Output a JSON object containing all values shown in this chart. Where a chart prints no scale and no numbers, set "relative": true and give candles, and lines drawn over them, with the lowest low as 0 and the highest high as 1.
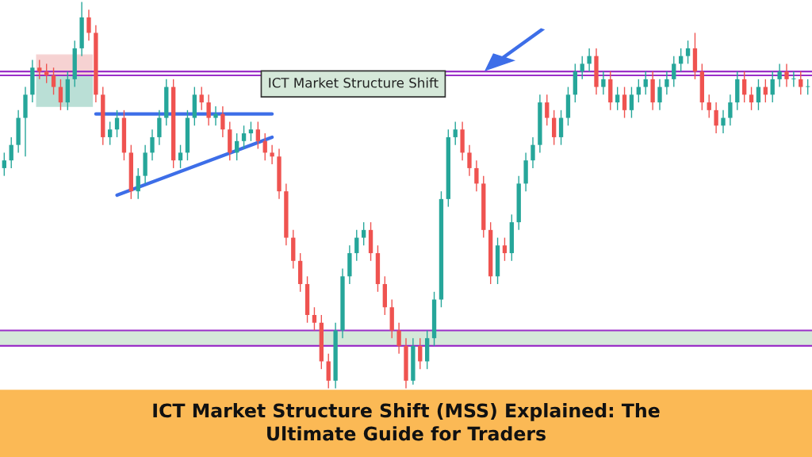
{
  "chart_data": {
    "type": "candlestick",
    "relative": true,
    "title": "ICT Market Structure Shift (MSS) Explained: The\nUltimate Guide for Traders",
    "annotations": [
      "ICT Market Structure Shift"
    ],
    "colors": [
      "#26a69a",
      "#26a69a",
      "#26a69a",
      "#26a69a",
      "#26a69a",
      "#ef5350",
      "#ef5350",
      "#ef5350",
      "#ef5350",
      "#26a69a",
      "#26a69a",
      "#26a69a",
      "#ef5350",
      "#ef5350",
      "#ef5350",
      "#26a69a",
      "#26a69a",
      "#ef5350",
      "#ef5350",
      "#26a69a",
      "#26a69a",
      "#26a69a",
      "#26a69a",
      "#26a69a",
      "#ef5350",
      "#26a69a",
      "#26a69a",
      "#26a69a",
      "#ef5350",
      "#ef5350",
      "#26a69a",
      "#ef5350",
      "#ef5350",
      "#26a69a",
      "#26a69a",
      "#26a69a",
      "#ef5350",
      "#ef5350",
      "#ef5350",
      "#ef5350",
      "#ef5350",
      "#ef5350",
      "#ef5350",
      "#ef5350",
      "#ef5350",
      "#ef5350",
      "#ef5350",
      "#26a69a",
      "#26a69a",
      "#26a69a",
      "#26a69a",
      "#26a69a",
      "#ef5350",
      "#ef5350",
      "#ef5350",
      "#ef5350",
      "#ef5350",
      "#ef5350",
      "#26a69a",
      "#ef5350",
      "#26a69a",
      "#26a69a",
      "#26a69a",
      "#26a69a",
      "#26a69a",
      "#ef5350",
      "#ef5350",
      "#ef5350",
      "#ef5350",
      "#ef5350",
      "#26a69a",
      "#ef5350",
      "#26a69a",
      "#26a69a",
      "#26a69a",
      "#26a69a",
      "#26a69a",
      "#ef5350",
      "#ef5350",
      "#26a69a",
      "#26a69a",
      "#26a69a",
      "#26a69a",
      "#26a69a",
      "#ef5350",
      "#26a69a",
      "#ef5350",
      "#26a69a",
      "#ef5350",
      "#26a69a",
      "#26a69a",
      "#26a69a",
      "#ef5350",
      "#26a69a",
      "#26a69a",
      "#26a69a",
      "#26a69a",
      "#26a69a",
      "#ef5350",
      "#ef5350",
      "#ef5350",
      "#ef5350",
      "#26a69a",
      "#26a69a",
      "#26a69a",
      "#ef5350",
      "#ef5350",
      "#26a69a",
      "#ef5350",
      "#26a69a",
      "#26a69a",
      "#ef5350",
      "#26a69a",
      "#ef5350",
      "#26a69a"
    ],
    "categories": [
      null,
      null,
      null,
      null,
      null,
      null,
      null,
      null,
      null,
      null,
      null,
      null,
      null,
      null,
      null,
      null,
      null,
      null,
      null,
      null,
      null,
      null,
      null,
      null,
      null,
      null,
      null,
      null,
      null,
      null,
      null,
      null,
      null,
      null,
      null,
      null,
      null,
      null,
      null,
      null,
      null,
      null,
      null,
      null,
      null,
      null,
      null,
      null,
      null,
      null,
      null,
      null,
      null,
      null,
      null,
      null,
      null,
      null,
      null,
      null,
      null,
      null,
      null,
      null,
      null,
      null,
      null,
      null,
      null,
      null,
      null,
      null,
      null,
      null,
      null,
      null,
      null,
      null,
      null,
      null,
      null,
      null,
      null,
      null,
      null,
      null,
      null,
      null,
      null,
      null,
      null,
      null,
      null,
      null,
      null,
      null,
      null,
      null,
      null,
      null,
      null,
      null,
      null,
      null,
      null,
      null,
      null,
      null,
      null,
      null,
      null,
      null,
      null,
      null,
      null
    ],
    "ohlc": [
      [
        0.57,
        0.61,
        0.55,
        0.59
      ],
      [
        0.59,
        0.65,
        0.57,
        0.63
      ],
      [
        0.63,
        0.72,
        0.61,
        0.7
      ],
      [
        0.7,
        0.78,
        0.6,
        0.76
      ],
      [
        0.76,
        0.85,
        0.74,
        0.83
      ],
      [
        0.83,
        0.85,
        0.8,
        0.82
      ],
      [
        0.82,
        0.84,
        0.79,
        0.81
      ],
      [
        0.81,
        0.83,
        0.76,
        0.78
      ],
      [
        0.78,
        0.8,
        0.72,
        0.74
      ],
      [
        0.74,
        0.82,
        0.72,
        0.8
      ],
      [
        0.8,
        0.9,
        0.78,
        0.88
      ],
      [
        0.88,
        1.0,
        0.86,
        0.96
      ],
      [
        0.96,
        0.98,
        0.9,
        0.92
      ],
      [
        0.92,
        0.94,
        0.74,
        0.76
      ],
      [
        0.76,
        0.78,
        0.63,
        0.65
      ],
      [
        0.65,
        0.69,
        0.63,
        0.67
      ],
      [
        0.67,
        0.72,
        0.65,
        0.7
      ],
      [
        0.7,
        0.72,
        0.59,
        0.61
      ],
      [
        0.61,
        0.63,
        0.49,
        0.51
      ],
      [
        0.51,
        0.57,
        0.49,
        0.55
      ],
      [
        0.55,
        0.63,
        0.53,
        0.61
      ],
      [
        0.61,
        0.67,
        0.59,
        0.65
      ],
      [
        0.65,
        0.72,
        0.63,
        0.7
      ],
      [
        0.7,
        0.8,
        0.68,
        0.78
      ],
      [
        0.78,
        0.8,
        0.57,
        0.59
      ],
      [
        0.59,
        0.63,
        0.57,
        0.61
      ],
      [
        0.61,
        0.72,
        0.59,
        0.7
      ],
      [
        0.7,
        0.78,
        0.68,
        0.76
      ],
      [
        0.76,
        0.78,
        0.72,
        0.74
      ],
      [
        0.74,
        0.76,
        0.68,
        0.7
      ],
      [
        0.7,
        0.73,
        0.68,
        0.71
      ],
      [
        0.71,
        0.73,
        0.65,
        0.67
      ],
      [
        0.67,
        0.69,
        0.59,
        0.61
      ],
      [
        0.61,
        0.66,
        0.59,
        0.64
      ],
      [
        0.64,
        0.68,
        0.62,
        0.66
      ],
      [
        0.66,
        0.69,
        0.64,
        0.67
      ],
      [
        0.67,
        0.69,
        0.62,
        0.64
      ],
      [
        0.64,
        0.66,
        0.59,
        0.61
      ],
      [
        0.61,
        0.63,
        0.58,
        0.6
      ],
      [
        0.6,
        0.62,
        0.49,
        0.51
      ],
      [
        0.51,
        0.53,
        0.37,
        0.39
      ],
      [
        0.39,
        0.41,
        0.31,
        0.33
      ],
      [
        0.33,
        0.35,
        0.25,
        0.27
      ],
      [
        0.27,
        0.29,
        0.17,
        0.19
      ],
      [
        0.19,
        0.21,
        0.15,
        0.17
      ],
      [
        0.17,
        0.19,
        0.05,
        0.07
      ],
      [
        0.07,
        0.09,
        0.0,
        0.02
      ],
      [
        0.02,
        0.17,
        0.0,
        0.15
      ],
      [
        0.15,
        0.31,
        0.13,
        0.29
      ],
      [
        0.29,
        0.37,
        0.27,
        0.35
      ],
      [
        0.35,
        0.41,
        0.33,
        0.39
      ],
      [
        0.39,
        0.43,
        0.37,
        0.41
      ],
      [
        0.41,
        0.43,
        0.33,
        0.35
      ],
      [
        0.35,
        0.37,
        0.25,
        0.27
      ],
      [
        0.27,
        0.29,
        0.19,
        0.21
      ],
      [
        0.21,
        0.23,
        0.13,
        0.15
      ],
      [
        0.15,
        0.17,
        0.09,
        0.11
      ],
      [
        0.11,
        0.13,
        0.0,
        0.02
      ],
      [
        0.02,
        0.13,
        0.01,
        0.11
      ],
      [
        0.11,
        0.13,
        0.05,
        0.07
      ],
      [
        0.07,
        0.15,
        0.05,
        0.13
      ],
      [
        0.13,
        0.25,
        0.11,
        0.23
      ],
      [
        0.23,
        0.51,
        0.21,
        0.49
      ],
      [
        0.49,
        0.67,
        0.47,
        0.65
      ],
      [
        0.65,
        0.69,
        0.63,
        0.67
      ],
      [
        0.67,
        0.69,
        0.59,
        0.61
      ],
      [
        0.61,
        0.63,
        0.55,
        0.57
      ],
      [
        0.57,
        0.59,
        0.51,
        0.53
      ],
      [
        0.53,
        0.55,
        0.39,
        0.41
      ],
      [
        0.41,
        0.43,
        0.27,
        0.29
      ],
      [
        0.29,
        0.39,
        0.27,
        0.37
      ],
      [
        0.37,
        0.39,
        0.33,
        0.35
      ],
      [
        0.35,
        0.45,
        0.33,
        0.43
      ],
      [
        0.43,
        0.55,
        0.41,
        0.53
      ],
      [
        0.53,
        0.61,
        0.51,
        0.59
      ],
      [
        0.59,
        0.65,
        0.57,
        0.63
      ],
      [
        0.63,
        0.76,
        0.61,
        0.74
      ],
      [
        0.74,
        0.76,
        0.68,
        0.7
      ],
      [
        0.7,
        0.72,
        0.63,
        0.65
      ],
      [
        0.65,
        0.72,
        0.63,
        0.7
      ],
      [
        0.7,
        0.78,
        0.68,
        0.76
      ],
      [
        0.76,
        0.84,
        0.74,
        0.82
      ],
      [
        0.82,
        0.86,
        0.8,
        0.84
      ],
      [
        0.84,
        0.88,
        0.82,
        0.86
      ],
      [
        0.86,
        0.88,
        0.76,
        0.78
      ],
      [
        0.78,
        0.82,
        0.76,
        0.8
      ],
      [
        0.8,
        0.82,
        0.72,
        0.74
      ],
      [
        0.74,
        0.78,
        0.72,
        0.76
      ],
      [
        0.76,
        0.78,
        0.7,
        0.72
      ],
      [
        0.72,
        0.78,
        0.7,
        0.76
      ],
      [
        0.76,
        0.8,
        0.74,
        0.78
      ],
      [
        0.78,
        0.82,
        0.76,
        0.8
      ],
      [
        0.8,
        0.82,
        0.72,
        0.74
      ],
      [
        0.74,
        0.8,
        0.72,
        0.78
      ],
      [
        0.78,
        0.82,
        0.76,
        0.8
      ],
      [
        0.8,
        0.86,
        0.78,
        0.84
      ],
      [
        0.84,
        0.88,
        0.82,
        0.86
      ],
      [
        0.86,
        0.9,
        0.84,
        0.88
      ],
      [
        0.88,
        0.92,
        0.8,
        0.82
      ],
      [
        0.82,
        0.84,
        0.72,
        0.74
      ],
      [
        0.74,
        0.76,
        0.7,
        0.72
      ],
      [
        0.72,
        0.74,
        0.66,
        0.68
      ],
      [
        0.68,
        0.72,
        0.66,
        0.7
      ],
      [
        0.7,
        0.76,
        0.68,
        0.74
      ],
      [
        0.74,
        0.82,
        0.72,
        0.8
      ],
      [
        0.8,
        0.82,
        0.74,
        0.76
      ],
      [
        0.76,
        0.78,
        0.72,
        0.74
      ],
      [
        0.74,
        0.8,
        0.72,
        0.78
      ],
      [
        0.78,
        0.8,
        0.74,
        0.76
      ],
      [
        0.76,
        0.82,
        0.74,
        0.8
      ],
      [
        0.8,
        0.84,
        0.78,
        0.82
      ],
      [
        0.82,
        0.84,
        0.78,
        0.8
      ],
      [
        0.8,
        0.82,
        0.78,
        0.8
      ],
      [
        0.8,
        0.82,
        0.76,
        0.78
      ],
      [
        0.78,
        0.8,
        0.76,
        0.78
      ]
    ],
    "series": [
      {
        "type": "line",
        "color": "#3d6ee8",
        "values": [
          null,
          null,
          null,
          null,
          null,
          null,
          null,
          null,
          null,
          null,
          null,
          null,
          null,
          0.71,
          null,
          null,
          null,
          null,
          null,
          null,
          null,
          null,
          null,
          null,
          null,
          null,
          null,
          null,
          null,
          null,
          null,
          null,
          null,
          null,
          null,
          null,
          null,
          null,
          0.71,
          null,
          null,
          null,
          null,
          null,
          null,
          null,
          null,
          null,
          null,
          null,
          null,
          null,
          null,
          null,
          null,
          null,
          null,
          null,
          null,
          null,
          null,
          null,
          null,
          null,
          null,
          null,
          null,
          null,
          null,
          null,
          null,
          null,
          null,
          null,
          null,
          null,
          null,
          null,
          null,
          null,
          null,
          null,
          null,
          null,
          null,
          null,
          null,
          null,
          null,
          null,
          null,
          null,
          null,
          null,
          null,
          null,
          null,
          null,
          null,
          null,
          null,
          null,
          null,
          null,
          null,
          null,
          null,
          null,
          null,
          null,
          null,
          null,
          null,
          null,
          null
        ]
      },
      {
        "type": "line",
        "color": "#3d6ee8",
        "values": [
          null,
          null,
          null,
          null,
          null,
          null,
          null,
          null,
          null,
          null,
          null,
          null,
          null,
          null,
          null,
          null,
          0.5,
          null,
          null,
          null,
          null,
          null,
          null,
          null,
          null,
          null,
          null,
          null,
          null,
          null,
          null,
          null,
          null,
          null,
          null,
          null,
          null,
          null,
          0.65,
          null,
          null,
          null,
          null,
          null,
          null,
          null,
          null,
          null,
          null,
          null,
          null,
          null,
          null,
          null,
          null,
          null,
          null,
          null,
          null,
          null,
          null,
          null,
          null,
          null,
          null,
          null,
          null,
          null,
          null,
          null,
          null,
          null,
          null,
          null,
          null,
          null,
          null,
          null,
          null,
          null,
          null,
          null,
          null,
          null,
          null,
          null,
          null,
          null,
          null,
          null,
          null,
          null,
          null,
          null,
          null,
          null,
          null,
          null,
          null,
          null,
          null,
          null,
          null,
          null,
          null,
          null,
          null,
          null,
          null,
          null,
          null,
          null,
          null,
          null,
          null
        ]
      }
    ],
    "ref_lines": [
      {
        "axis": "y",
        "value": 0.82,
        "color": "#9b30c8"
      },
      {
        "axis": "y",
        "value": 0.81,
        "color": "#9b30c8"
      },
      {
        "axis": "y",
        "value": 0.15,
        "color": "#9b30c8"
      },
      {
        "axis": "y",
        "value": 0.11,
        "color": "#9b30c8"
      }
    ],
    "bands": [
      {
        "axis": "y",
        "from": 0.11,
        "to": 0.15,
        "color": "#d5e8d9"
      }
    ]
  }
}
